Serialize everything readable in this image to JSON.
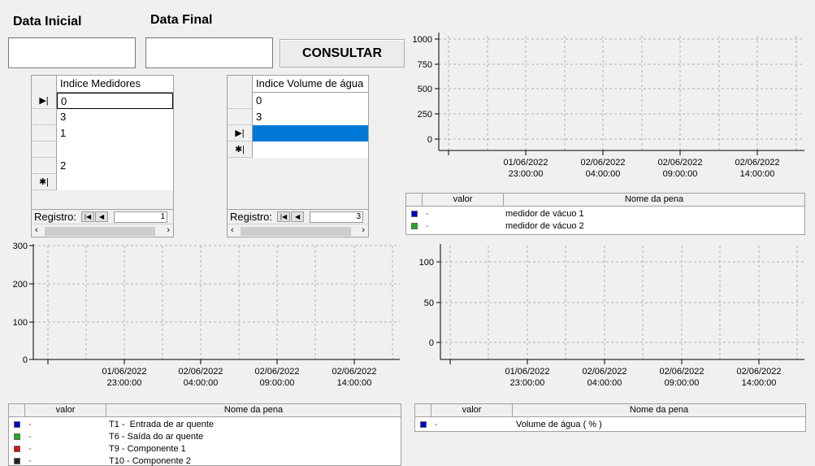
{
  "form": {
    "start_label": "Data Inicial",
    "end_label": "Data Final",
    "start_value": "",
    "end_value": "",
    "consult_button": "CONSULTAR"
  },
  "grid_medidores": {
    "header": "Indice Medidores",
    "rows": [
      "0",
      "3",
      "1",
      "",
      "2",
      ""
    ],
    "nav_label": "Registro:",
    "record_number": "1"
  },
  "grid_volume": {
    "header": "Indice Volume de água",
    "rows": [
      "0",
      "3",
      "",
      ""
    ],
    "nav_label": "Registro:",
    "record_number": "3"
  },
  "x_ticks": [
    "01/06/2022\n23:00:00",
    "02/06/2022\n04:00:00",
    "02/06/2022\n09:00:00",
    "02/06/2022\n14:00:00"
  ],
  "chart_vacuum": {
    "y_ticks": [
      "1000",
      "750",
      "500",
      "250",
      "0"
    ],
    "legend_header_value": "valor",
    "legend_header_name": "Nome da pena",
    "series": [
      {
        "value": "-",
        "name": "medidor de vácuo 1",
        "color": "#0000cc"
      },
      {
        "value": "-",
        "name": "medidor de vácuo 2",
        "color": "#22aa22"
      }
    ]
  },
  "chart_temp": {
    "y_ticks": [
      "300",
      "200",
      "100",
      "0"
    ],
    "legend_header_value": "valor",
    "legend_header_name": "Nome da pena",
    "series": [
      {
        "value": "-",
        "name": "T1 -  Entrada de ar quente",
        "color": "#0000cc"
      },
      {
        "value": "-",
        "name": "T6 - Saída do ar quente",
        "color": "#22aa22"
      },
      {
        "value": "-",
        "name": "T9 - Componente 1",
        "color": "#dd1111"
      },
      {
        "value": "-",
        "name": "T10 - Componente 2",
        "color": "#222222"
      }
    ]
  },
  "chart_water": {
    "y_ticks": [
      "100",
      "50",
      "0"
    ],
    "legend_header_value": "valor",
    "legend_header_name": "Nome da pena",
    "series": [
      {
        "value": "-",
        "name": "Volume de água ( % )",
        "color": "#0000cc"
      }
    ]
  },
  "colors": {
    "selected_row": "#0078d7",
    "grid_line": "#b0b0b0"
  }
}
